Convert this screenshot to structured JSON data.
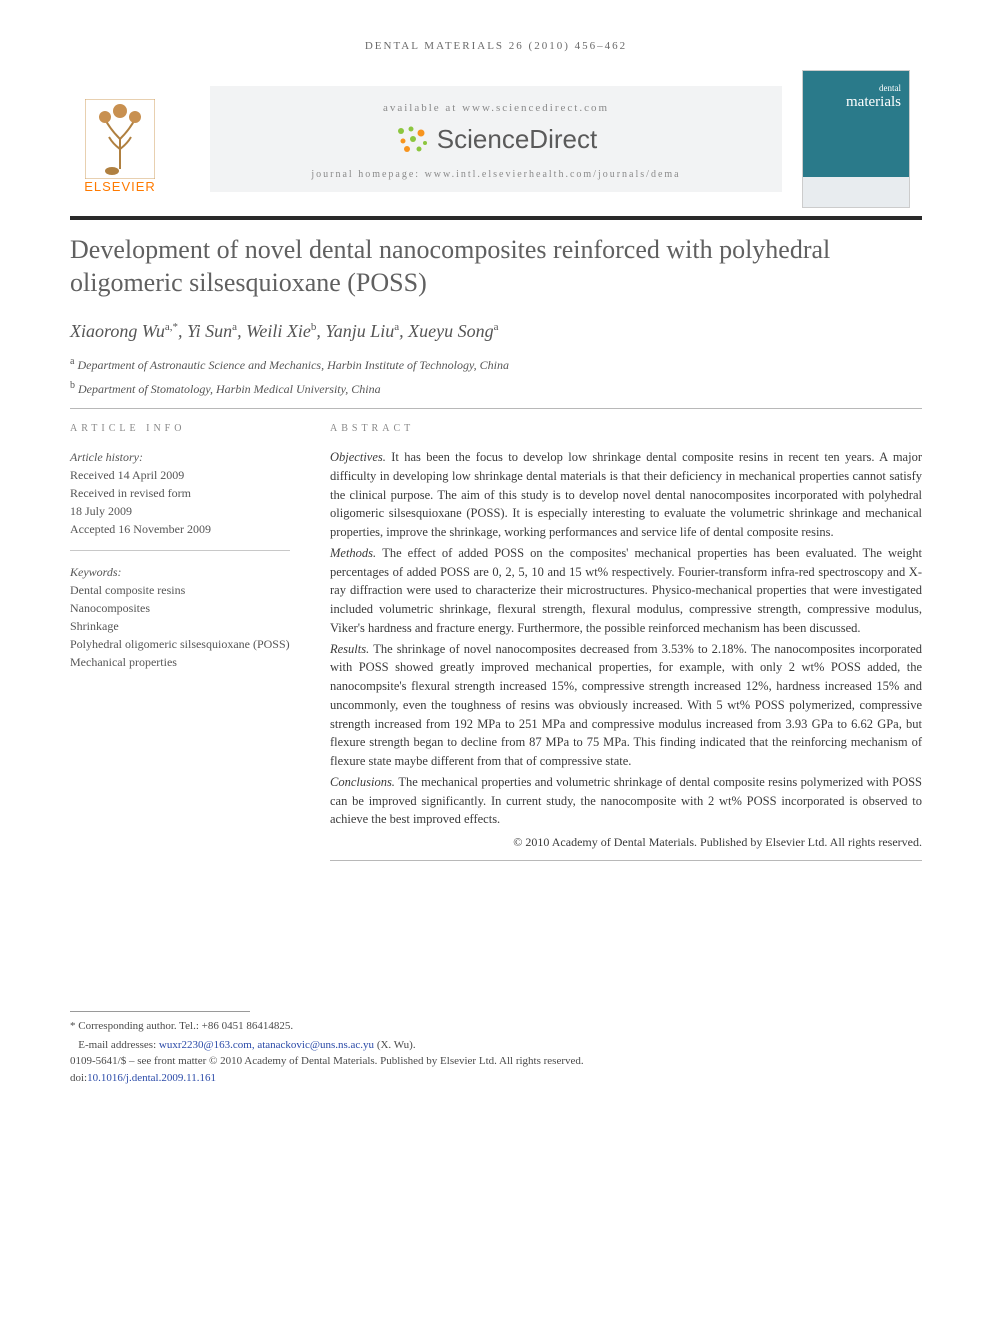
{
  "running_head": "DENTAL MATERIALS 26 (2010) 456–462",
  "banner": {
    "available_text": "available at www.sciencedirect.com",
    "sd_brand": "ScienceDirect",
    "homepage_text": "journal homepage: www.intl.elsevierhealth.com/journals/dema",
    "publisher": "ELSEVIER",
    "cover_title_small": "dental",
    "cover_title_large": "materials"
  },
  "title": "Development of novel dental nanocomposites reinforced with polyhedral oligomeric silsesquioxane (POSS)",
  "authors_html": "Xiaorong Wu<sup>a,*</sup>, Yi Sun<sup>a</sup>, Weili Xie<sup>b</sup>, Yanju Liu<sup>a</sup>, Xueyu Song<sup>a</sup>",
  "affiliations": [
    {
      "sup": "a",
      "text": "Department of Astronautic Science and Mechanics, Harbin Institute of Technology, China"
    },
    {
      "sup": "b",
      "text": "Department of Stomatology, Harbin Medical University, China"
    }
  ],
  "info": {
    "heading": "ARTICLE INFO",
    "history_label": "Article history:",
    "history": [
      "Received 14 April 2009",
      "Received in revised form",
      "18 July 2009",
      "Accepted 16 November 2009"
    ],
    "keywords_label": "Keywords:",
    "keywords": [
      "Dental composite resins",
      "Nanocomposites",
      "Shrinkage",
      "Polyhedral oligomeric silsesquioxane (POSS)",
      "Mechanical properties"
    ]
  },
  "abstract": {
    "heading": "ABSTRACT",
    "sections": [
      {
        "label": "Objectives.",
        "text": "It has been the focus to develop low shrinkage dental composite resins in recent ten years. A major difficulty in developing low shrinkage dental materials is that their deficiency in mechanical properties cannot satisfy the clinical purpose. The aim of this study is to develop novel dental nanocomposites incorporated with polyhedral oligomeric silsesquioxane (POSS). It is especially interesting to evaluate the volumetric shrinkage and mechanical properties, improve the shrinkage, working performances and service life of dental composite resins."
      },
      {
        "label": "Methods.",
        "text": "The effect of added POSS on the composites' mechanical properties has been evaluated. The weight percentages of added POSS are 0, 2, 5, 10 and 15 wt% respectively. Fourier-transform infra-red spectroscopy and X-ray diffraction were used to characterize their microstructures. Physico-mechanical properties that were investigated included volumetric shrinkage, flexural strength, flexural modulus, compressive strength, compressive modulus, Viker's hardness and fracture energy. Furthermore, the possible reinforced mechanism has been discussed."
      },
      {
        "label": "Results.",
        "text": "The shrinkage of novel nanocomposites decreased from 3.53% to 2.18%. The nanocomposites incorporated with POSS showed greatly improved mechanical properties, for example, with only 2 wt% POSS added, the nanocompsite's flexural strength increased 15%, compressive strength increased 12%, hardness increased 15% and uncommonly, even the toughness of resins was obviously increased. With 5 wt% POSS polymerized, compressive strength increased from 192 MPa to 251 MPa and compressive modulus increased from 3.93 GPa to 6.62 GPa, but flexure strength began to decline from 87 MPa to 75 MPa. This finding indicated that the reinforcing mechanism of flexure state maybe different from that of compressive state."
      },
      {
        "label": "Conclusions.",
        "text": "The mechanical properties and volumetric shrinkage of dental composite resins polymerized with POSS can be improved significantly. In current study, the nanocomposite with 2 wt% POSS incorporated is observed to achieve the best improved effects."
      }
    ],
    "copyright": "© 2010 Academy of Dental Materials. Published by Elsevier Ltd. All rights reserved."
  },
  "footer": {
    "corresponding": "* Corresponding author. Tel.: +86 0451 86414825.",
    "emails_label": "E-mail addresses:",
    "emails": "wuxr2230@163.com, atanackovic@uns.ns.ac.yu",
    "email_attr": "(X. Wu).",
    "front_matter": "0109-5641/$ – see front matter © 2010 Academy of Dental Materials. Published by Elsevier Ltd. All rights reserved.",
    "doi_label": "doi:",
    "doi": "10.1016/j.dental.2009.11.161"
  },
  "colors": {
    "elsevier_orange": "#ff7a00",
    "banner_bg": "#f2f3f4",
    "cover_bg": "#2a7a8a",
    "text": "#3a3a3a",
    "muted": "#888888",
    "doi_link": "#2a4aa8",
    "sd_green": "#8cc63f",
    "sd_orange": "#f7941e"
  }
}
